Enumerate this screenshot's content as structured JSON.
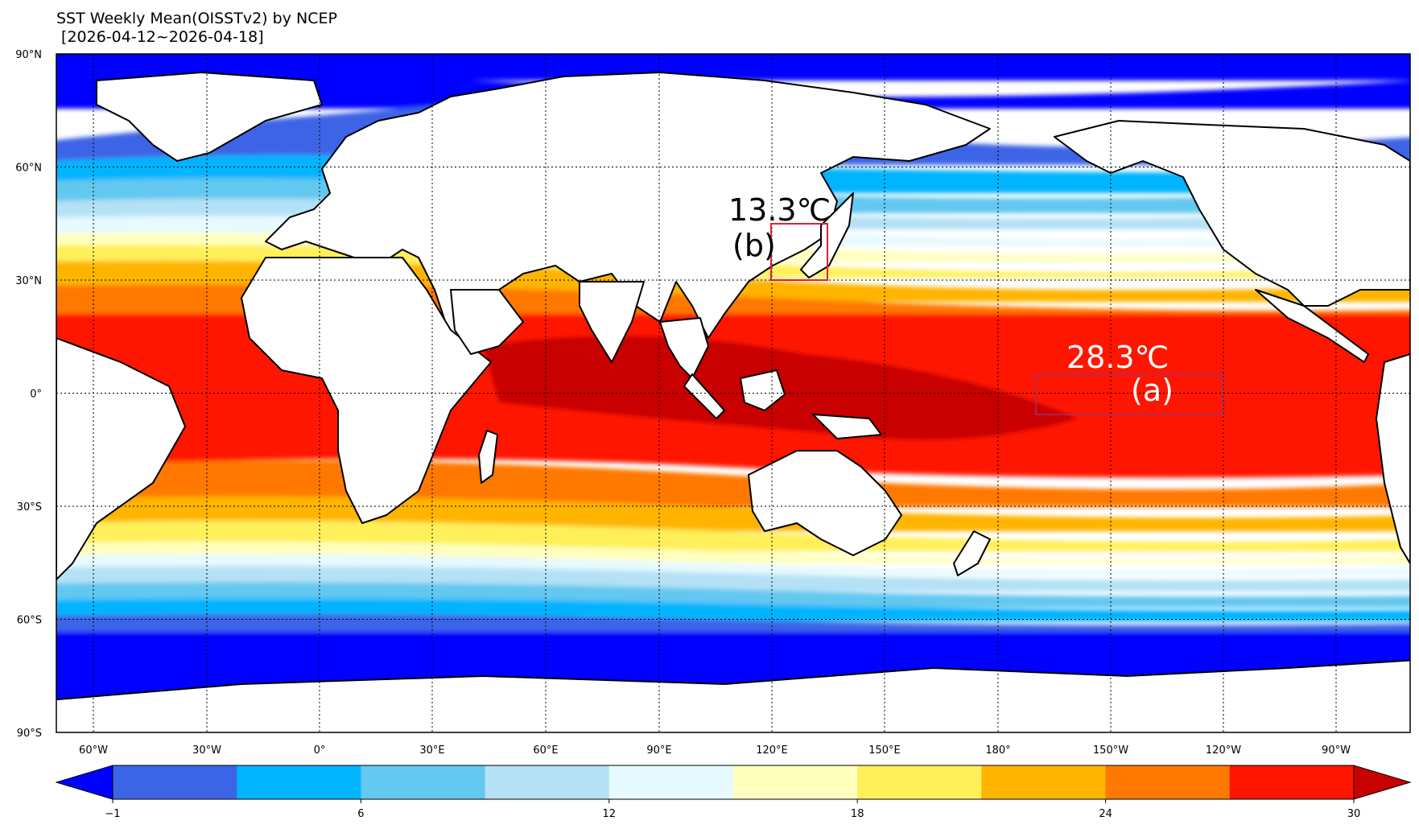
{
  "title": "SST Weekly Mean(OISSTv2) by NCEP",
  "date_range": " [2026-04-12~2026-04-18]",
  "lat_labels": [
    "90°N",
    "60°N",
    "30°N",
    "0°",
    "30°S",
    "60°S",
    "90°S"
  ],
  "lon_labels": [
    "60°W",
    "30°W",
    "0°",
    "30°E",
    "60°E",
    "90°E",
    "120°E",
    "150°E",
    "180°",
    "150°W",
    "120°W",
    "90°W"
  ],
  "annotations": {
    "a": {
      "value": "28.3℃",
      "label": "(a)",
      "color": "#ffffff"
    },
    "b": {
      "value": "13.3℃",
      "label": "(b)",
      "color": "#000000"
    }
  },
  "colorbar": {
    "colors": [
      "#0000ff",
      "#3c64e6",
      "#00b4ff",
      "#64c8f0",
      "#b4e1f5",
      "#e6faff",
      "#ffffbe",
      "#fff05a",
      "#ffb400",
      "#ff7800",
      "#ff1400",
      "#c80000"
    ],
    "tick_labels": [
      "−1",
      "6",
      "12",
      "18",
      "24",
      "30"
    ],
    "land_color": "#ffffff"
  }
}
